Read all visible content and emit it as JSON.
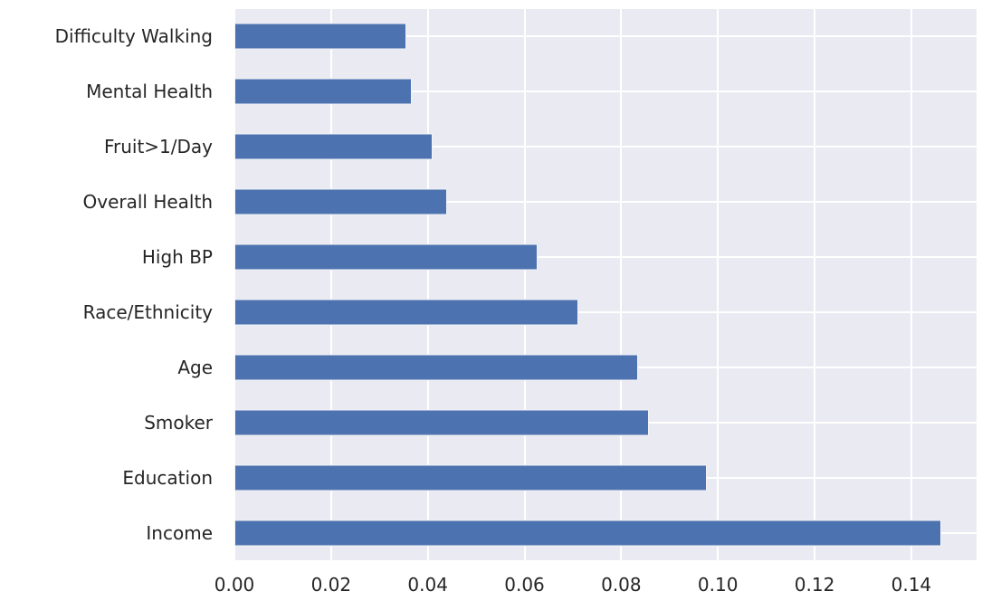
{
  "chart_data": {
    "type": "bar",
    "orientation": "horizontal",
    "title": "",
    "xlabel": "",
    "ylabel": "",
    "categories_top_to_bottom": [
      "Difficulty Walking",
      "Mental Health",
      "Fruit>1/Day",
      "Overall Health",
      "High BP",
      "Race/Ethnicity",
      "Age",
      "Smoker",
      "Education",
      "Income"
    ],
    "values": [
      0.0355,
      0.0366,
      0.041,
      0.044,
      0.0628,
      0.0712,
      0.0835,
      0.0858,
      0.0977,
      0.1462
    ],
    "x_ticks": [
      "0.00",
      "0.02",
      "0.04",
      "0.06",
      "0.08",
      "0.10",
      "0.12",
      "0.14"
    ],
    "x_tick_values": [
      0.0,
      0.02,
      0.04,
      0.06,
      0.08,
      0.1,
      0.12,
      0.14
    ],
    "xlim": [
      0,
      0.1535
    ],
    "grid": true,
    "legend": "none",
    "colors": {
      "bar": "#4c72b0",
      "bar_edge": "#f2f2f7",
      "plot_background": "#eaeaf2",
      "gridline": "#ffffff",
      "text": "#262626",
      "figure_background": "#ffffff"
    }
  }
}
